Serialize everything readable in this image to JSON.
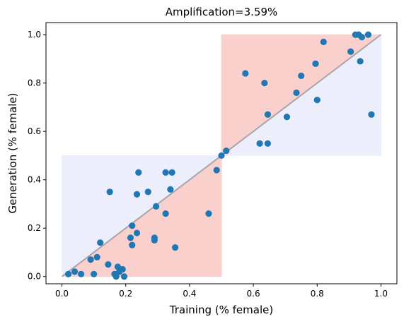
{
  "chart_data": {
    "type": "scatter",
    "title": "Amplification=3.59%",
    "xlabel": "Training (% female)",
    "ylabel": "Generation (% female)",
    "xlim": [
      -0.05,
      1.05
    ],
    "ylim": [
      -0.03,
      1.05
    ],
    "xticks": [
      0.0,
      0.2,
      0.4,
      0.6,
      0.8,
      1.0
    ],
    "yticks": [
      0.0,
      0.2,
      0.4,
      0.6,
      0.8,
      1.0
    ],
    "xtick_labels": [
      "0.0",
      "0.2",
      "0.4",
      "0.6",
      "0.8",
      "1.0"
    ],
    "ytick_labels": [
      "0.0",
      "0.2",
      "0.4",
      "0.6",
      "0.8",
      "1.0"
    ],
    "grid": false,
    "reference_line": {
      "x": [
        0.0,
        1.0
      ],
      "y": [
        0.0,
        1.0
      ],
      "color": "#aaa3a8"
    },
    "shaded_regions": [
      {
        "x": [
          0.0,
          0.5
        ],
        "y": [
          0.0,
          0.5
        ],
        "shape": "below-diagonal",
        "color": "#fad0cc"
      },
      {
        "x": [
          0.5,
          1.0
        ],
        "y": [
          0.5,
          1.0
        ],
        "shape": "above-diagonal",
        "color": "#fad0cc"
      },
      {
        "x": [
          0.0,
          0.5
        ],
        "y": [
          0.0,
          0.5
        ],
        "shape": "above-diagonal",
        "color": "#eceefc"
      },
      {
        "x": [
          0.5,
          1.0
        ],
        "y": [
          0.5,
          1.0
        ],
        "shape": "below-diagonal",
        "color": "#eceefc"
      }
    ],
    "point_color": "#1f77b4",
    "points": [
      {
        "x": 0.02,
        "y": 0.01
      },
      {
        "x": 0.04,
        "y": 0.02
      },
      {
        "x": 0.06,
        "y": 0.01
      },
      {
        "x": 0.09,
        "y": 0.07
      },
      {
        "x": 0.1,
        "y": 0.01
      },
      {
        "x": 0.11,
        "y": 0.08
      },
      {
        "x": 0.12,
        "y": 0.14
      },
      {
        "x": 0.145,
        "y": 0.05
      },
      {
        "x": 0.15,
        "y": 0.35
      },
      {
        "x": 0.165,
        "y": 0.01
      },
      {
        "x": 0.17,
        "y": 0.0
      },
      {
        "x": 0.175,
        "y": 0.04
      },
      {
        "x": 0.18,
        "y": 0.02
      },
      {
        "x": 0.19,
        "y": 0.03
      },
      {
        "x": 0.195,
        "y": 0.0
      },
      {
        "x": 0.215,
        "y": 0.16
      },
      {
        "x": 0.22,
        "y": 0.21
      },
      {
        "x": 0.22,
        "y": 0.13
      },
      {
        "x": 0.235,
        "y": 0.18
      },
      {
        "x": 0.235,
        "y": 0.34
      },
      {
        "x": 0.24,
        "y": 0.43
      },
      {
        "x": 0.27,
        "y": 0.35
      },
      {
        "x": 0.29,
        "y": 0.15
      },
      {
        "x": 0.29,
        "y": 0.16
      },
      {
        "x": 0.295,
        "y": 0.29
      },
      {
        "x": 0.325,
        "y": 0.43
      },
      {
        "x": 0.325,
        "y": 0.26
      },
      {
        "x": 0.34,
        "y": 0.36
      },
      {
        "x": 0.345,
        "y": 0.43
      },
      {
        "x": 0.355,
        "y": 0.12
      },
      {
        "x": 0.46,
        "y": 0.26
      },
      {
        "x": 0.485,
        "y": 0.44
      },
      {
        "x": 0.5,
        "y": 0.5
      },
      {
        "x": 0.515,
        "y": 0.52
      },
      {
        "x": 0.575,
        "y": 0.84
      },
      {
        "x": 0.62,
        "y": 0.55
      },
      {
        "x": 0.635,
        "y": 0.8
      },
      {
        "x": 0.645,
        "y": 0.67
      },
      {
        "x": 0.645,
        "y": 0.55
      },
      {
        "x": 0.705,
        "y": 0.66
      },
      {
        "x": 0.735,
        "y": 0.76
      },
      {
        "x": 0.75,
        "y": 0.83
      },
      {
        "x": 0.795,
        "y": 0.88
      },
      {
        "x": 0.8,
        "y": 0.73
      },
      {
        "x": 0.82,
        "y": 0.97
      },
      {
        "x": 0.905,
        "y": 0.93
      },
      {
        "x": 0.92,
        "y": 1.0
      },
      {
        "x": 0.93,
        "y": 1.0
      },
      {
        "x": 0.935,
        "y": 0.89
      },
      {
        "x": 0.94,
        "y": 0.99
      },
      {
        "x": 0.96,
        "y": 1.0
      },
      {
        "x": 0.97,
        "y": 0.67
      }
    ]
  }
}
